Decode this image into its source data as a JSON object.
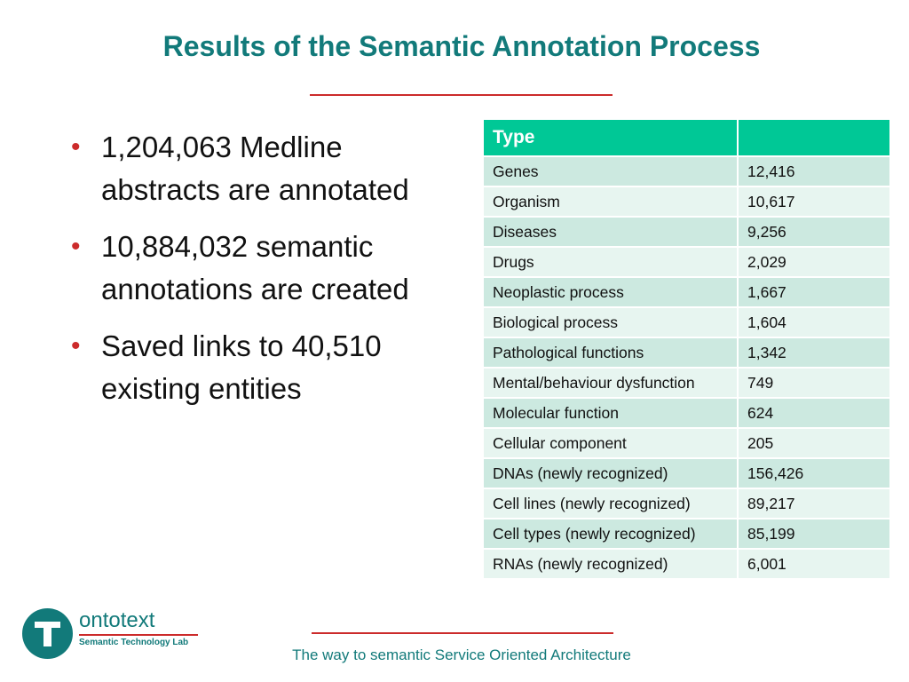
{
  "title": "Results of the Semantic Annotation Process",
  "bullets": [
    "1,204,063 Medline abstracts are annotated",
    "10,884,032 semantic annotations are created",
    "Saved links to 40,510 existing entities"
  ],
  "table": {
    "headers": [
      "Type",
      ""
    ],
    "rows": [
      [
        "Genes",
        "12,416"
      ],
      [
        "Organism",
        "10,617"
      ],
      [
        "Diseases",
        "9,256"
      ],
      [
        "Drugs",
        "2,029"
      ],
      [
        "Neoplastic process",
        "1,667"
      ],
      [
        "Biological process",
        "1,604"
      ],
      [
        "Pathological functions",
        "1,342"
      ],
      [
        "Mental/behaviour dysfunction",
        "749"
      ],
      [
        "Molecular function",
        "624"
      ],
      [
        "Cellular component",
        "205"
      ],
      [
        "DNAs (newly recognized)",
        "156,426"
      ],
      [
        "Cell lines (newly recognized)",
        "89,217"
      ],
      [
        "Cell types (newly recognized)",
        "85,199"
      ],
      [
        "RNAs (newly recognized)",
        "6,001"
      ]
    ]
  },
  "logo": {
    "name": "ontotext",
    "subtitle": "Semantic Technology Lab"
  },
  "footer": "The way to semantic Service Oriented Architecture",
  "colors": {
    "title": "#127a7a",
    "accent_red": "#cc2b2b",
    "header_green": "#00c896",
    "row_dark": "#cce9e0",
    "row_light": "#e7f5f0"
  }
}
